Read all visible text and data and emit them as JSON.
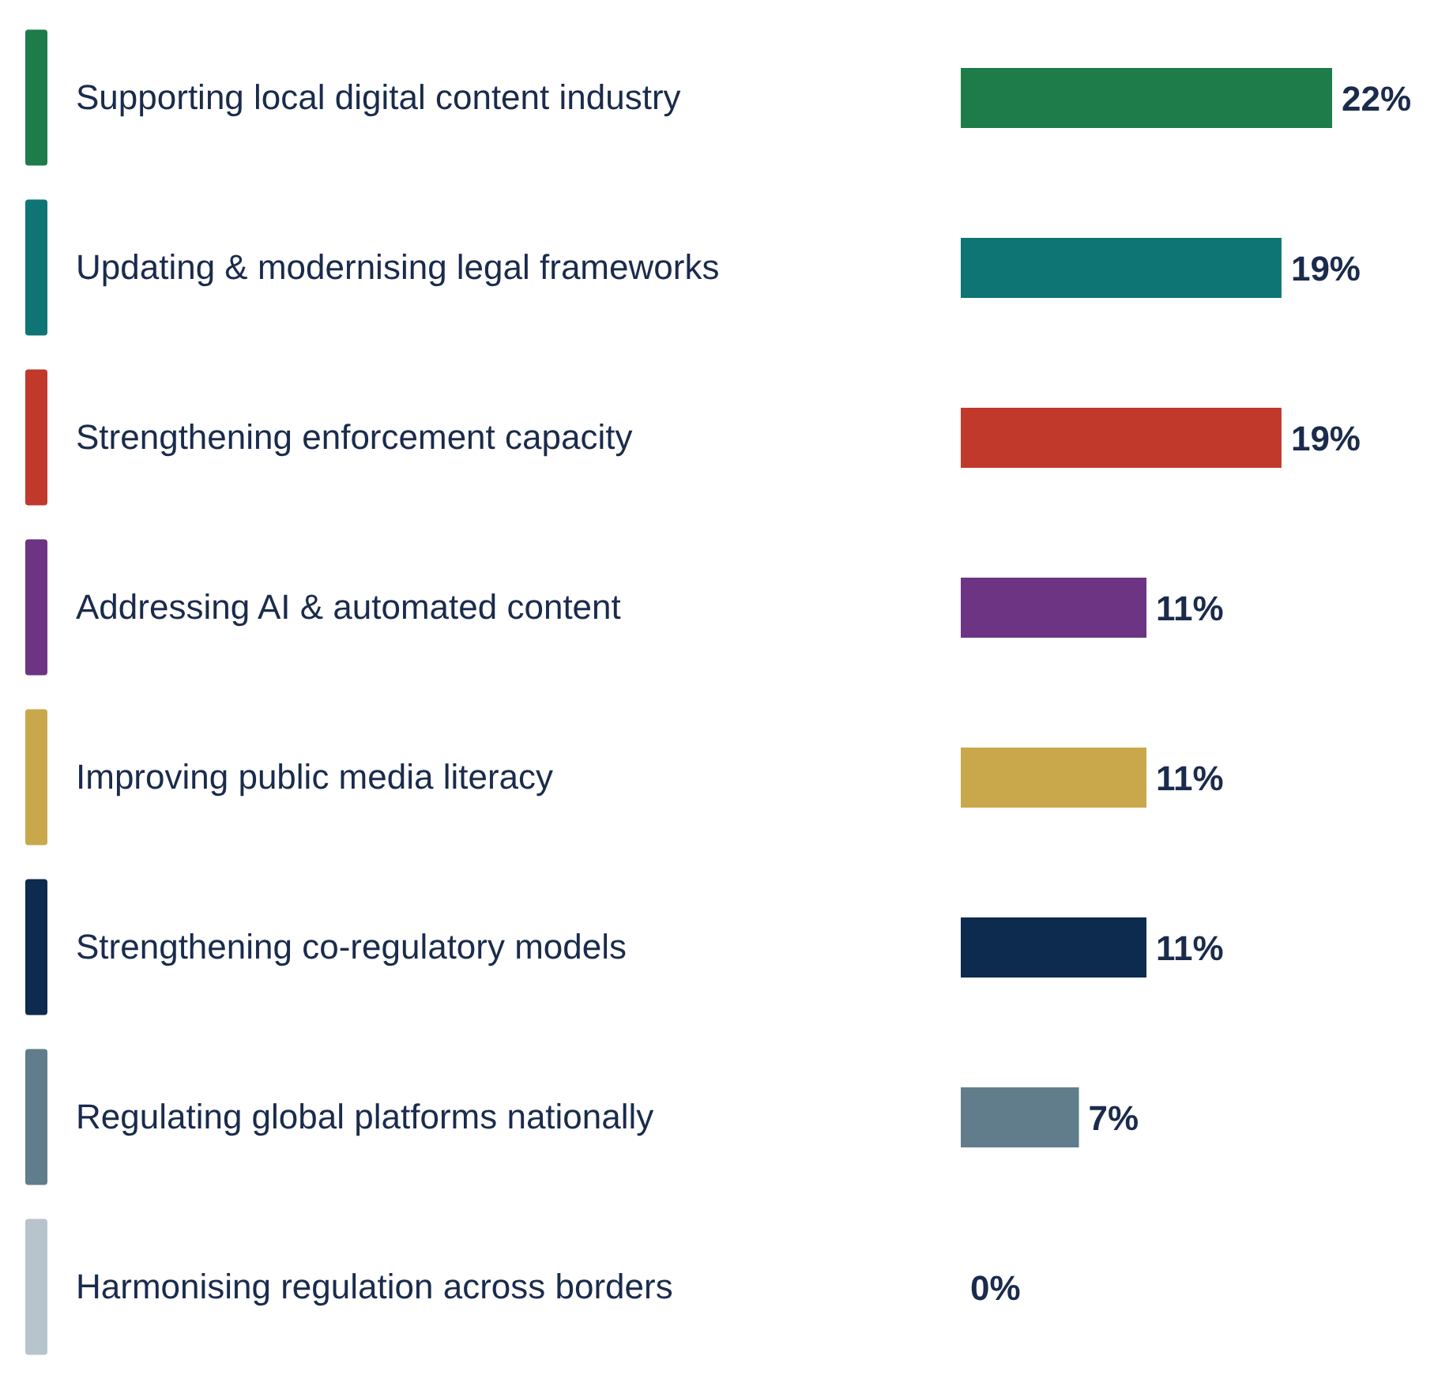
{
  "chart_data": {
    "type": "bar",
    "orientation": "horizontal",
    "categories": [
      "Supporting local digital content industry",
      "Updating & modernising legal frameworks",
      "Strengthening enforcement capacity",
      "Addressing AI & automated content",
      "Improving public media literacy",
      "Strengthening co-regulatory models",
      "Regulating global platforms nationally",
      "Harmonising regulation across borders"
    ],
    "values": [
      22,
      19,
      19,
      11,
      11,
      11,
      7,
      0
    ],
    "colors": [
      "#1e7c4a",
      "#0e7474",
      "#c0392b",
      "#6c3483",
      "#c9a84c",
      "#0d2a4f",
      "#617d8b",
      "#b8c4cc"
    ],
    "value_labels": [
      "22%",
      "19%",
      "19%",
      "11%",
      "11%",
      "11%",
      "7%",
      "0%"
    ],
    "tick_labels": "y",
    "grid": false
  }
}
